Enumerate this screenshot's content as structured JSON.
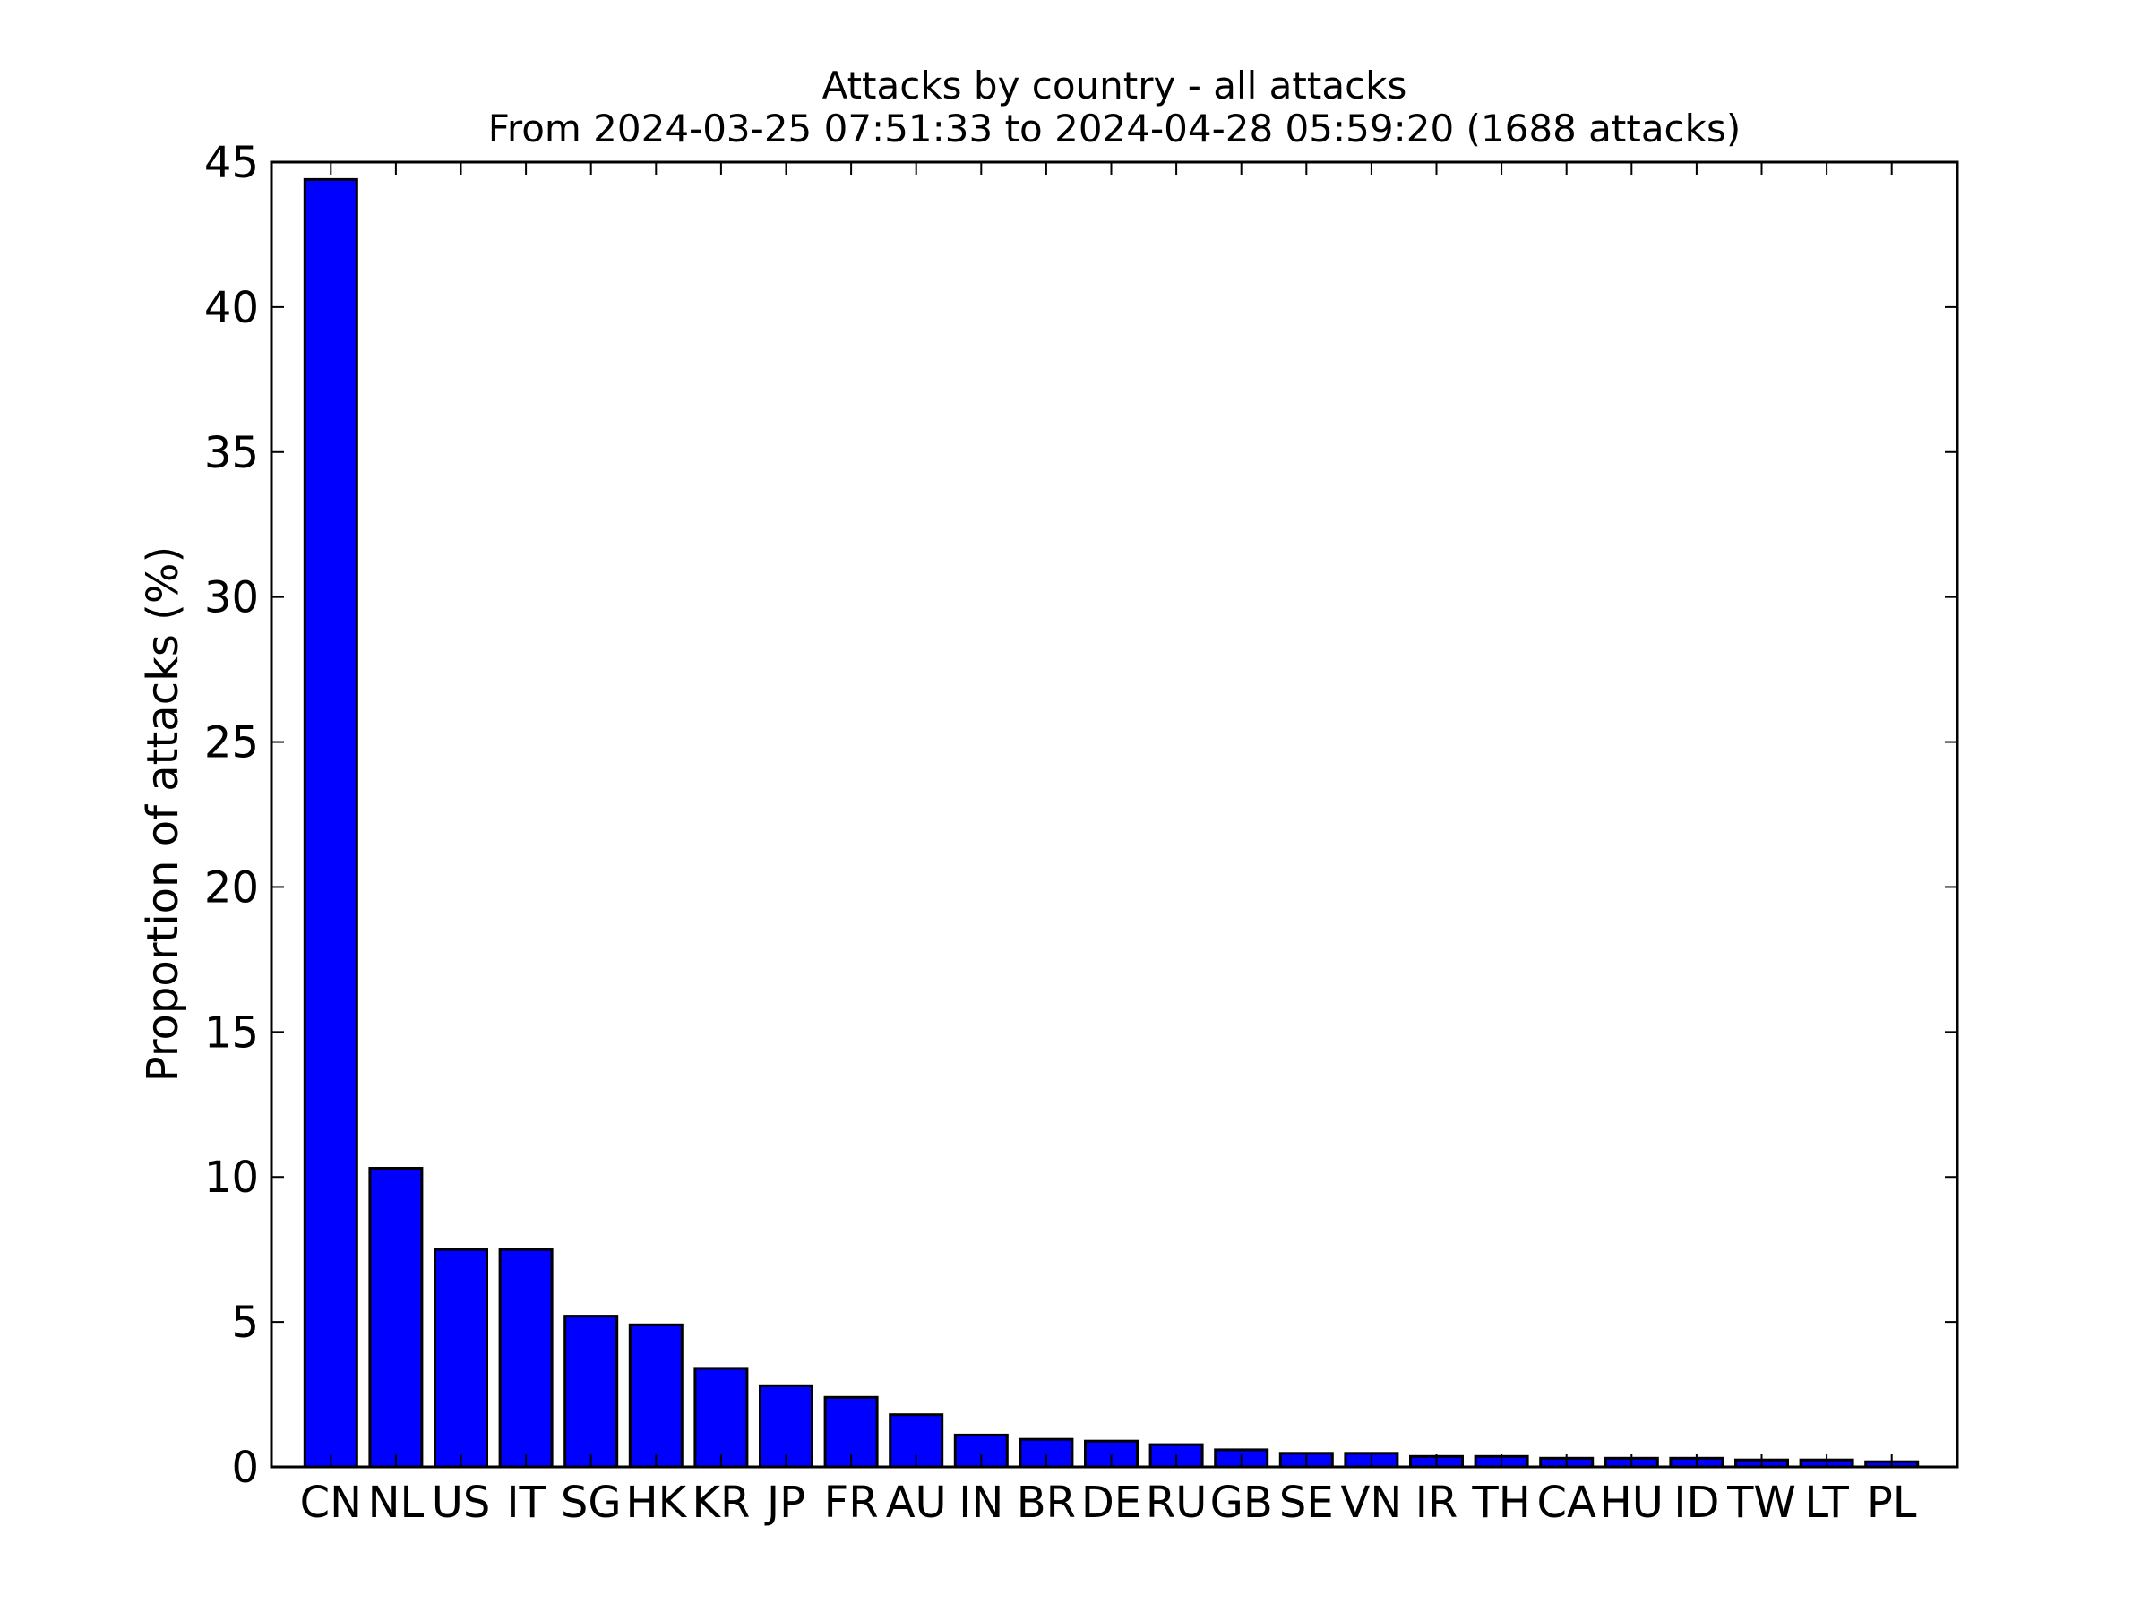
{
  "chart_data": {
    "type": "bar",
    "title": "Attacks by country - all attacks",
    "subtitle": "From 2024-03-25 07:51:33 to 2024-04-28 05:59:20 (1688 attacks)",
    "xlabel": "",
    "ylabel": "Proportion of attacks (%)",
    "ylim": [
      0,
      45
    ],
    "yticks": [
      0,
      5,
      10,
      15,
      20,
      25,
      30,
      35,
      40,
      45
    ],
    "categories": [
      "CN",
      "NL",
      "US",
      "IT",
      "SG",
      "HK",
      "KR",
      "JP",
      "FR",
      "AU",
      "IN",
      "BR",
      "DE",
      "RU",
      "GB",
      "SE",
      "VN",
      "IR",
      "TH",
      "CA",
      "HU",
      "ID",
      "TW",
      "LT",
      "PL"
    ],
    "values": [
      44.4,
      10.3,
      7.5,
      7.5,
      5.2,
      4.9,
      3.4,
      2.8,
      2.4,
      1.8,
      1.1,
      0.95,
      0.89,
      0.77,
      0.59,
      0.47,
      0.47,
      0.36,
      0.36,
      0.3,
      0.3,
      0.3,
      0.24,
      0.24,
      0.18
    ],
    "bar_color": "#0000ff",
    "edge_color": "#000000",
    "grid": false,
    "legend": "none"
  }
}
